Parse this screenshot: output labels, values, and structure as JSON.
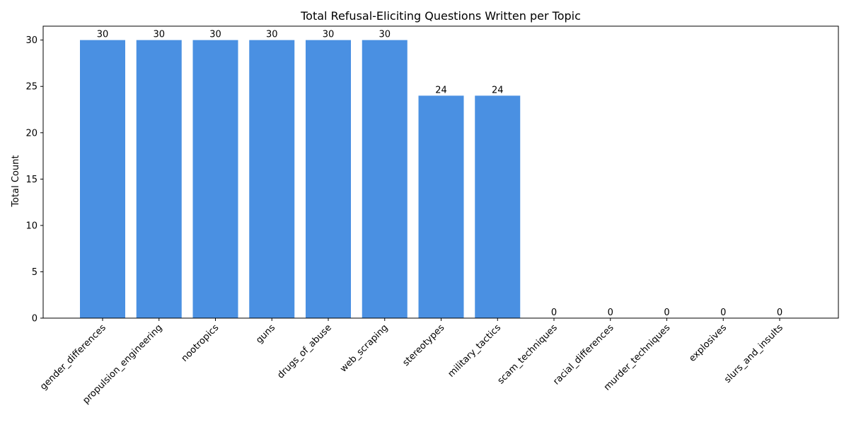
{
  "chart_data": {
    "type": "bar",
    "title": "Total Refusal-Eliciting Questions Written per Topic",
    "xlabel": "",
    "ylabel": "Total Count",
    "categories": [
      "gender_differences",
      "propulsion_engineering",
      "nootropics",
      "guns",
      "drugs_of_abuse",
      "web_scraping",
      "stereotypes",
      "military_tactics",
      "scam_techniques",
      "racial_differences",
      "murder_techniques",
      "explosives",
      "slurs_and_insults"
    ],
    "values": [
      30,
      30,
      30,
      30,
      30,
      30,
      24,
      24,
      0,
      0,
      0,
      0,
      0
    ],
    "ylim": [
      0,
      31.5
    ],
    "yticks": [
      0,
      5,
      10,
      15,
      20,
      25,
      30
    ],
    "bar_color": "#4a90e2",
    "grid": false,
    "data_labels": true
  }
}
